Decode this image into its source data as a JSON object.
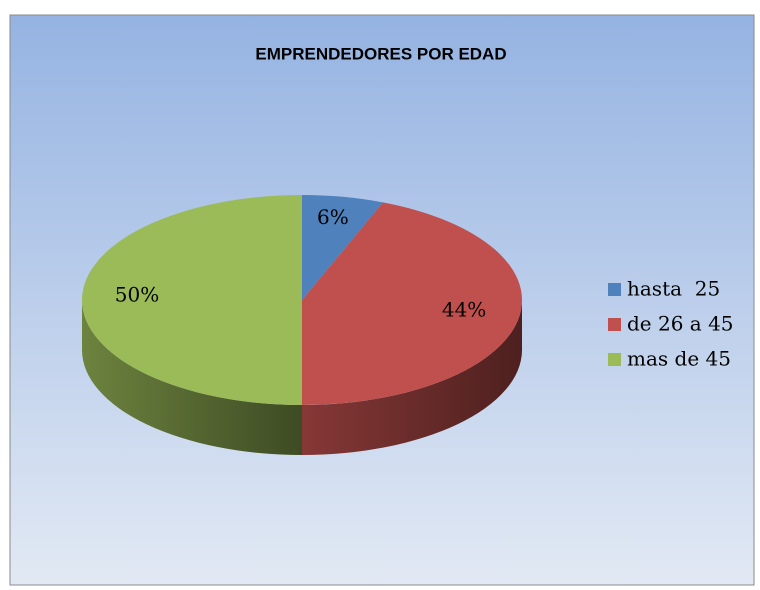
{
  "chart_data": {
    "type": "pie",
    "title": "EMPRENDEDORES POR EDAD",
    "categories": [
      "hasta  25",
      "de 26 a 45",
      "mas de 45"
    ],
    "values": [
      6,
      44,
      50
    ],
    "value_labels": [
      "6%",
      "44%",
      "50%"
    ],
    "colors": [
      "#4f81bd",
      "#c0504d",
      "#9bbb59"
    ],
    "legend": "right"
  }
}
